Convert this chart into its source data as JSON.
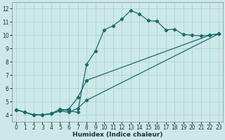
{
  "xlabel": "Humidex (Indice chaleur)",
  "xlim": [
    -0.5,
    23.5
  ],
  "ylim": [
    3.5,
    12.5
  ],
  "yticks": [
    4,
    5,
    6,
    7,
    8,
    9,
    10,
    11,
    12
  ],
  "xticks": [
    0,
    1,
    2,
    3,
    4,
    5,
    6,
    7,
    8,
    9,
    10,
    11,
    12,
    13,
    14,
    15,
    16,
    17,
    18,
    19,
    20,
    21,
    22,
    23
  ],
  "bg_color": "#cce8e8",
  "grid_color": "#b0d4d4",
  "line_color": "#1a6b6b",
  "lines": [
    {
      "x": [
        0,
        1,
        2,
        3,
        4,
        5,
        6,
        7,
        8,
        9,
        10,
        11,
        12,
        13,
        14,
        15,
        16,
        17,
        18,
        19,
        20,
        21,
        22,
        23
      ],
      "y": [
        4.4,
        4.2,
        4.0,
        4.0,
        4.1,
        4.45,
        4.3,
        4.2,
        7.8,
        8.8,
        10.4,
        10.7,
        11.2,
        11.85,
        11.6,
        11.1,
        11.05,
        10.4,
        10.45,
        10.05,
        10.0,
        9.95,
        10.0,
        10.1
      ]
    },
    {
      "x": [
        0,
        1,
        2,
        3,
        4,
        5,
        6,
        7,
        8,
        22,
        23
      ],
      "y": [
        4.4,
        4.2,
        4.0,
        4.0,
        4.1,
        4.3,
        4.45,
        5.3,
        6.6,
        10.0,
        10.1
      ]
    },
    {
      "x": [
        0,
        1,
        2,
        3,
        4,
        5,
        6,
        7,
        8,
        23
      ],
      "y": [
        4.4,
        4.2,
        4.0,
        4.0,
        4.1,
        4.3,
        4.2,
        4.5,
        5.1,
        10.1
      ]
    }
  ]
}
